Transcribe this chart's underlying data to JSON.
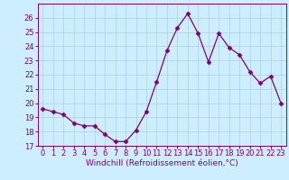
{
  "x": [
    0,
    1,
    2,
    3,
    4,
    5,
    6,
    7,
    8,
    9,
    10,
    11,
    12,
    13,
    14,
    15,
    16,
    17,
    18,
    19,
    20,
    21,
    22,
    23
  ],
  "y": [
    19.6,
    19.4,
    19.2,
    18.6,
    18.4,
    18.4,
    17.8,
    17.3,
    17.3,
    18.1,
    19.4,
    21.5,
    23.7,
    25.3,
    26.3,
    24.9,
    22.9,
    24.9,
    23.9,
    23.4,
    22.2,
    21.4,
    21.9,
    20.0
  ],
  "line_color": "#800080",
  "marker": "D",
  "markersize": 2.5,
  "linewidth": 0.9,
  "xlabel": "Windchill (Refroidissement éolien,°C)",
  "xlim": [
    -0.5,
    23.5
  ],
  "ylim": [
    17,
    27
  ],
  "yticks": [
    17,
    18,
    19,
    20,
    21,
    22,
    23,
    24,
    25,
    26
  ],
  "xticks": [
    0,
    1,
    2,
    3,
    4,
    5,
    6,
    7,
    8,
    9,
    10,
    11,
    12,
    13,
    14,
    15,
    16,
    17,
    18,
    19,
    20,
    21,
    22,
    23
  ],
  "bg_color": "#cceeff",
  "grid_color": "#aad4d4",
  "line_border_color": "#800080",
  "xlabel_fontsize": 6.5,
  "tick_fontsize": 6.0,
  "grid_linewidth": 0.5
}
